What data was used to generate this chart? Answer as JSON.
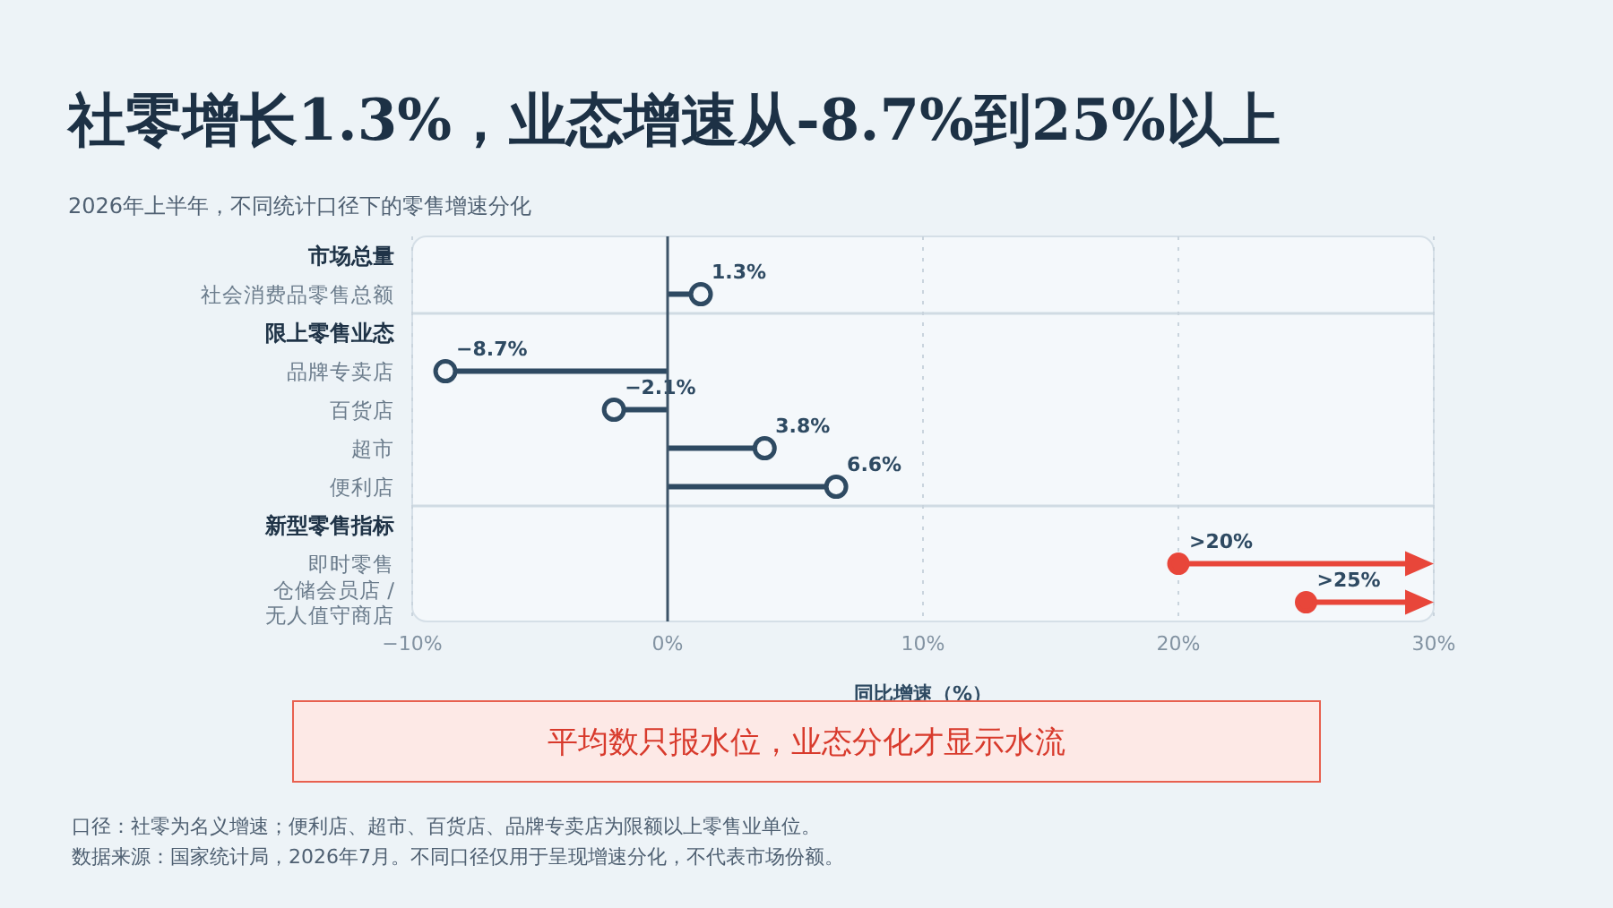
{
  "chart_data": {
    "type": "lollipop",
    "orientation": "horizontal",
    "title": "社零增长1.3%，业态增速从-8.7%到25%以上",
    "subtitle": "2026年上半年，不同统计口径下的零售增速分化",
    "xlabel": "同比增速（%）",
    "categories": [
      "市场总量",
      "社会消费品零售总额",
      "限上零售业态",
      "品牌专卖店",
      "百货店",
      "超市",
      "便利店",
      "新型零售指标",
      "即时零售",
      "仓储会员店 /\n无人值守商店"
    ],
    "series": [
      {
        "color": "#2e4a62",
        "values": [
          null,
          1.3,
          null,
          -8.7,
          -2.1,
          3.8,
          6.6,
          null,
          null,
          null
        ],
        "value_labels": [
          null,
          "1.3%",
          null,
          "−8.7%",
          "−2.1%",
          "3.8%",
          "6.6%",
          null,
          null,
          null
        ]
      },
      {
        "type": "scatter",
        "color": "#e8463a",
        "values": [
          null,
          null,
          null,
          null,
          null,
          null,
          null,
          null,
          20,
          25
        ],
        "value_labels": [
          null,
          null,
          null,
          null,
          null,
          null,
          null,
          null,
          ">20%",
          ">25%"
        ]
      }
    ],
    "xlim": [
      -10,
      30
    ],
    "xticks": [
      {
        "value": -10,
        "label": "−10%"
      },
      {
        "value": 0,
        "label": "0%"
      },
      {
        "value": 10,
        "label": "10%"
      },
      {
        "value": 20,
        "label": "20%"
      },
      {
        "value": 30,
        "label": "30%"
      }
    ],
    "grid": "x",
    "marker": "circle",
    "ref_lines": [
      {
        "axis": "x",
        "value": 0,
        "color": "#3d5468"
      }
    ],
    "annotations": [
      "平均数只报水位，业态分化才显示水流",
      "口径：社零为名义增速；便利店、超市、百货店、品牌专卖店为限额以上零售业单位。",
      "数据来源：国家统计局，2026年7月。不同口径仅用于呈现增速分化，不代表市场份额。"
    ]
  }
}
